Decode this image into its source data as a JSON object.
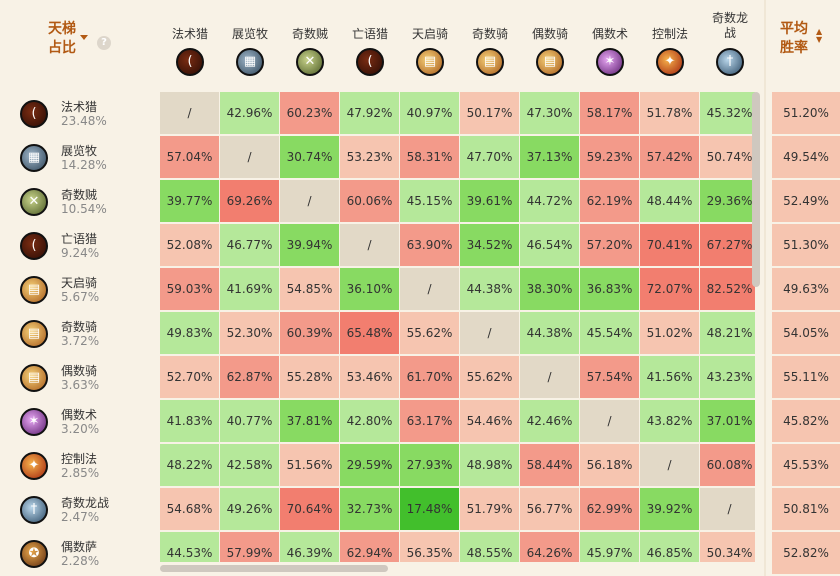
{
  "header": {
    "share_label": "天梯\n占比",
    "sort_icon": "caret-down-icon",
    "help_icon": "question-mark-icon",
    "avg_label": "平均\n胜率",
    "avg_sort_icon": "sort-updown-icon"
  },
  "colors": {
    "accent": "#b25a14",
    "neutral": "#e2d9c7",
    "strong_red": "#f27e6f",
    "red": "#f39a8a",
    "light_red": "#f6c5b0",
    "light_green": "#b5e89a",
    "green": "#88da62",
    "strong_green": "#42bf2c"
  },
  "columns": [
    {
      "label": "法术猎",
      "icon": "hunter-bow-icon"
    },
    {
      "label": "展览牧",
      "icon": "priest-exhibit-icon"
    },
    {
      "label": "奇数贼",
      "icon": "rogue-daggers-icon"
    },
    {
      "label": "亡语猎",
      "icon": "hunter-bow-icon"
    },
    {
      "label": "天启骑",
      "icon": "paladin-book-icon"
    },
    {
      "label": "奇数骑",
      "icon": "paladin-book-icon"
    },
    {
      "label": "偶数骑",
      "icon": "paladin-book-icon"
    },
    {
      "label": "偶数术",
      "icon": "warlock-fel-icon"
    },
    {
      "label": "控制法",
      "icon": "mage-fire-icon"
    },
    {
      "label": "奇数龙\n战",
      "icon": "warrior-sword-icon"
    }
  ],
  "rows": [
    {
      "name": "法术猎",
      "share": "23.48%",
      "icon": "hunter-bow-icon",
      "cells": [
        "/",
        "42.96%",
        "60.23%",
        "47.92%",
        "40.97%",
        "50.17%",
        "47.30%",
        "58.17%",
        "51.78%",
        "45.32%"
      ],
      "avg": "51.20%"
    },
    {
      "name": "展览牧",
      "share": "14.28%",
      "icon": "priest-exhibit-icon",
      "cells": [
        "57.04%",
        "/",
        "30.74%",
        "53.23%",
        "58.31%",
        "47.70%",
        "37.13%",
        "59.23%",
        "57.42%",
        "50.74%"
      ],
      "avg": "49.54%"
    },
    {
      "name": "奇数贼",
      "share": "10.54%",
      "icon": "rogue-daggers-icon",
      "cells": [
        "39.77%",
        "69.26%",
        "/",
        "60.06%",
        "45.15%",
        "39.61%",
        "44.72%",
        "62.19%",
        "48.44%",
        "29.36%"
      ],
      "avg": "52.49%"
    },
    {
      "name": "亡语猎",
      "share": "9.24%",
      "icon": "hunter-bow-icon",
      "cells": [
        "52.08%",
        "46.77%",
        "39.94%",
        "/",
        "63.90%",
        "34.52%",
        "46.54%",
        "57.20%",
        "70.41%",
        "67.27%"
      ],
      "avg": "51.30%"
    },
    {
      "name": "天启骑",
      "share": "5.67%",
      "icon": "paladin-book-icon",
      "cells": [
        "59.03%",
        "41.69%",
        "54.85%",
        "36.10%",
        "/",
        "44.38%",
        "38.30%",
        "36.83%",
        "72.07%",
        "82.52%"
      ],
      "avg": "49.63%"
    },
    {
      "name": "奇数骑",
      "share": "3.72%",
      "icon": "paladin-book-icon",
      "cells": [
        "49.83%",
        "52.30%",
        "60.39%",
        "65.48%",
        "55.62%",
        "/",
        "44.38%",
        "45.54%",
        "51.02%",
        "48.21%"
      ],
      "avg": "54.05%"
    },
    {
      "name": "偶数骑",
      "share": "3.63%",
      "icon": "paladin-book-icon",
      "cells": [
        "52.70%",
        "62.87%",
        "55.28%",
        "53.46%",
        "61.70%",
        "55.62%",
        "/",
        "57.54%",
        "41.56%",
        "43.23%"
      ],
      "avg": "55.11%"
    },
    {
      "name": "偶数术",
      "share": "3.20%",
      "icon": "warlock-fel-icon",
      "cells": [
        "41.83%",
        "40.77%",
        "37.81%",
        "42.80%",
        "63.17%",
        "54.46%",
        "42.46%",
        "/",
        "43.82%",
        "37.01%"
      ],
      "avg": "45.82%"
    },
    {
      "name": "控制法",
      "share": "2.85%",
      "icon": "mage-fire-icon",
      "cells": [
        "48.22%",
        "42.58%",
        "51.56%",
        "29.59%",
        "27.93%",
        "48.98%",
        "58.44%",
        "56.18%",
        "/",
        "60.08%"
      ],
      "avg": "45.53%"
    },
    {
      "name": "奇数龙战",
      "share": "2.47%",
      "icon": "warrior-sword-icon",
      "cells": [
        "54.68%",
        "49.26%",
        "70.64%",
        "32.73%",
        "17.48%",
        "51.79%",
        "56.77%",
        "62.99%",
        "39.92%",
        "/"
      ],
      "avg": "50.81%"
    },
    {
      "name": "偶数萨",
      "share": "2.28%",
      "icon": "shaman-totem-icon",
      "cells": [
        "44.53%",
        "57.99%",
        "46.39%",
        "62.94%",
        "56.35%",
        "48.55%",
        "64.26%",
        "45.97%",
        "46.85%",
        "50.34%"
      ],
      "avg": "52.82%"
    }
  ]
}
